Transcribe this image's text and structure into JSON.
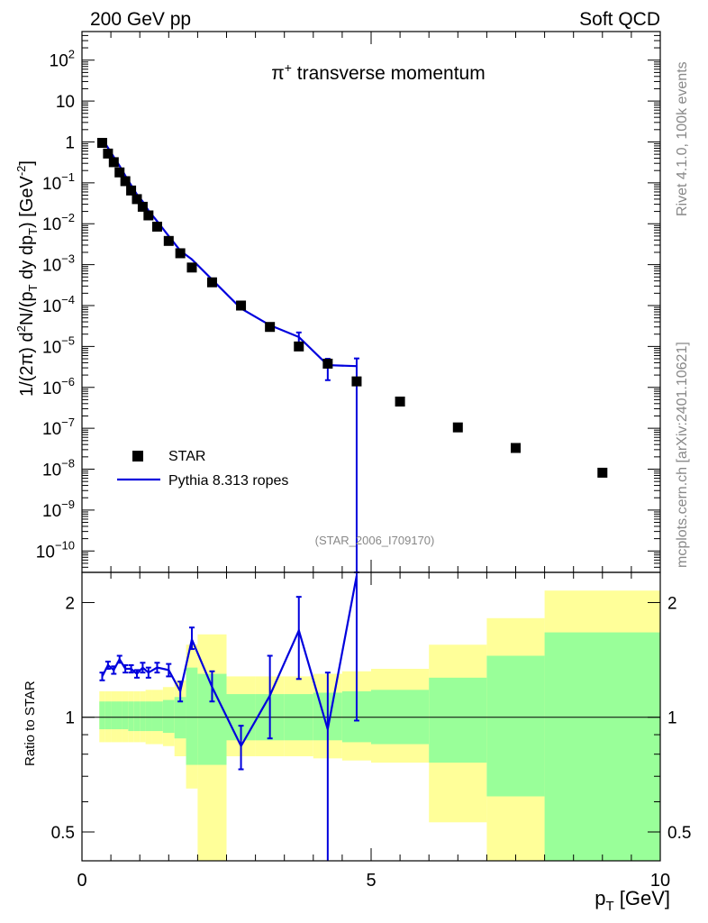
{
  "header": {
    "left": "200 GeV pp",
    "right": "Soft QCD"
  },
  "side_labels": {
    "rivet": "Rivet 4.1.0,  100k events",
    "mcplots": "mcplots.cern.ch [arXiv:2401.10621]"
  },
  "colors": {
    "data": "#000000",
    "mc": "#0000dd",
    "band_outer": "#ffff99",
    "band_inner": "#99ff99"
  },
  "chart_data": [
    {
      "type": "scatter",
      "title": "π⁺ transverse momentum",
      "watermark": "(STAR_2006_I709170)",
      "ylabel": "1/(2π)  d²N/(p_T dy dp_T) [GeV⁻²]",
      "ylabel_parts": {
        "prefix": "1/(2",
        "pi": "π",
        "mid": ")  d",
        "sup2": "2",
        "n": "N/(p",
        "sub_t1": "T",
        "dy": " dy dp",
        "sub_t2": "T",
        "unit": ") [GeV",
        "unit_sup": "-2",
        "close": "]"
      },
      "title_parts": {
        "pi": "π",
        "sup": "+",
        "rest": " transverse momentum"
      },
      "yscale": "log",
      "ylim": [
        3e-11,
        500
      ],
      "xlim": [
        0,
        10
      ],
      "yticks": [
        {
          "value": 100,
          "base": "10",
          "exp": "2"
        },
        {
          "value": 10,
          "base": "10",
          "exp": ""
        },
        {
          "value": 1,
          "base": "1",
          "exp": ""
        },
        {
          "value": 0.1,
          "base": "10",
          "exp": "−1"
        },
        {
          "value": 0.01,
          "base": "10",
          "exp": "−2"
        },
        {
          "value": 0.001,
          "base": "10",
          "exp": "−3"
        },
        {
          "value": 0.0001,
          "base": "10",
          "exp": "−4"
        },
        {
          "value": 1e-05,
          "base": "10",
          "exp": "−5"
        },
        {
          "value": 1e-06,
          "base": "10",
          "exp": "−6"
        },
        {
          "value": 1e-07,
          "base": "10",
          "exp": "−7"
        },
        {
          "value": 1e-08,
          "base": "10",
          "exp": "−8"
        },
        {
          "value": 1e-09,
          "base": "10",
          "exp": "−9"
        },
        {
          "value": 1e-10,
          "base": "10",
          "exp": "−10"
        }
      ],
      "legend": {
        "position": "bottom-left",
        "data_label": "STAR",
        "mc_label": "Pythia 8.313 ropes"
      },
      "series": [
        {
          "name": "STAR",
          "x": [
            0.35,
            0.45,
            0.55,
            0.65,
            0.75,
            0.85,
            0.95,
            1.05,
            1.15,
            1.3,
            1.5,
            1.7,
            1.9,
            2.25,
            2.75,
            3.25,
            3.75,
            4.25,
            4.75,
            5.5,
            6.5,
            7.5,
            9.0
          ],
          "y": [
            0.95,
            0.52,
            0.32,
            0.18,
            0.11,
            0.065,
            0.04,
            0.026,
            0.016,
            0.0085,
            0.0038,
            0.0019,
            0.00085,
            0.00037,
            0.0001,
            3e-05,
            1e-05,
            3.8e-06,
            1.4e-06,
            4.5e-07,
            1.05e-07,
            3.3e-08,
            8.2e-09
          ]
        },
        {
          "name": "Pythia 8.313 ropes",
          "x": [
            0.35,
            0.45,
            0.55,
            0.65,
            0.75,
            0.85,
            0.95,
            1.05,
            1.15,
            1.3,
            1.5,
            1.7,
            1.9,
            2.25,
            2.75,
            3.25,
            3.75,
            4.25,
            4.75
          ],
          "y": [
            1.2,
            0.72,
            0.43,
            0.26,
            0.148,
            0.088,
            0.052,
            0.035,
            0.021,
            0.0115,
            0.005,
            0.0022,
            0.00135,
            0.00043,
            8.5e-05,
            3.3e-05,
            1.7e-05,
            3.5e-06,
            3.3e-06
          ],
          "yerr_lo": [
            0,
            0,
            0,
            0,
            0,
            0,
            0,
            0,
            0,
            0,
            0,
            0,
            0,
            0,
            0,
            0,
            5e-06,
            2e-06,
            3.3e-06
          ],
          "yerr_hi": [
            0,
            0,
            0,
            0,
            0,
            0,
            0,
            0,
            0,
            0,
            0,
            0,
            0,
            0,
            0,
            0,
            5e-06,
            1.5e-06,
            1.8e-06
          ]
        }
      ]
    },
    {
      "type": "line",
      "ylabel": "Ratio to STAR",
      "xlabel_main": "p",
      "xlabel_sub": "T",
      "xlabel_unit": " [GeV]",
      "yscale": "log",
      "ylim": [
        0.42,
        2.4
      ],
      "xlim": [
        0,
        10
      ],
      "reference_line": 1,
      "yticks": [
        {
          "value": 2,
          "label": "2"
        },
        {
          "value": 1,
          "label": "1"
        },
        {
          "value": 0.5,
          "label": "0.5"
        }
      ],
      "xticks": [
        {
          "value": 0,
          "label": "0"
        },
        {
          "value": 5,
          "label": "5"
        },
        {
          "value": 10,
          "label": "10"
        }
      ],
      "bands": [
        {
          "x0": 0.3,
          "x1": 0.4,
          "o_lo": 0.86,
          "o_hi": 1.17,
          "i_lo": 0.93,
          "i_hi": 1.1
        },
        {
          "x0": 0.4,
          "x1": 0.5,
          "o_lo": 0.86,
          "o_hi": 1.17,
          "i_lo": 0.93,
          "i_hi": 1.1
        },
        {
          "x0": 0.5,
          "x1": 0.6,
          "o_lo": 0.86,
          "o_hi": 1.17,
          "i_lo": 0.93,
          "i_hi": 1.1
        },
        {
          "x0": 0.6,
          "x1": 0.7,
          "o_lo": 0.86,
          "o_hi": 1.17,
          "i_lo": 0.93,
          "i_hi": 1.1
        },
        {
          "x0": 0.7,
          "x1": 0.8,
          "o_lo": 0.86,
          "o_hi": 1.17,
          "i_lo": 0.93,
          "i_hi": 1.1
        },
        {
          "x0": 0.8,
          "x1": 0.9,
          "o_lo": 0.86,
          "o_hi": 1.17,
          "i_lo": 0.92,
          "i_hi": 1.1
        },
        {
          "x0": 0.9,
          "x1": 1.0,
          "o_lo": 0.86,
          "o_hi": 1.17,
          "i_lo": 0.92,
          "i_hi": 1.1
        },
        {
          "x0": 1.0,
          "x1": 1.1,
          "o_lo": 0.86,
          "o_hi": 1.17,
          "i_lo": 0.92,
          "i_hi": 1.1
        },
        {
          "x0": 1.1,
          "x1": 1.2,
          "o_lo": 0.85,
          "o_hi": 1.18,
          "i_lo": 0.92,
          "i_hi": 1.1
        },
        {
          "x0": 1.2,
          "x1": 1.4,
          "o_lo": 0.85,
          "o_hi": 1.18,
          "i_lo": 0.92,
          "i_hi": 1.1
        },
        {
          "x0": 1.4,
          "x1": 1.6,
          "o_lo": 0.84,
          "o_hi": 1.2,
          "i_lo": 0.91,
          "i_hi": 1.11
        },
        {
          "x0": 1.6,
          "x1": 1.8,
          "o_lo": 0.79,
          "o_hi": 1.25,
          "i_lo": 0.88,
          "i_hi": 1.13
        },
        {
          "x0": 1.8,
          "x1": 2.0,
          "o_lo": 0.65,
          "o_hi": 1.55,
          "i_lo": 0.75,
          "i_hi": 1.35
        },
        {
          "x0": 2.0,
          "x1": 2.5,
          "o_lo": 0.37,
          "o_hi": 1.65,
          "i_lo": 0.75,
          "i_hi": 1.3
        },
        {
          "x0": 2.5,
          "x1": 3.0,
          "o_lo": 0.79,
          "o_hi": 1.28,
          "i_lo": 0.87,
          "i_hi": 1.15
        },
        {
          "x0": 3.0,
          "x1": 3.5,
          "o_lo": 0.79,
          "o_hi": 1.28,
          "i_lo": 0.87,
          "i_hi": 1.15
        },
        {
          "x0": 3.5,
          "x1": 4.0,
          "o_lo": 0.79,
          "o_hi": 1.28,
          "i_lo": 0.87,
          "i_hi": 1.15
        },
        {
          "x0": 4.0,
          "x1": 4.5,
          "o_lo": 0.78,
          "o_hi": 1.3,
          "i_lo": 0.87,
          "i_hi": 1.16
        },
        {
          "x0": 4.5,
          "x1": 5.0,
          "o_lo": 0.77,
          "o_hi": 1.32,
          "i_lo": 0.86,
          "i_hi": 1.17
        },
        {
          "x0": 5.0,
          "x1": 6.0,
          "o_lo": 0.76,
          "o_hi": 1.34,
          "i_lo": 0.85,
          "i_hi": 1.18
        },
        {
          "x0": 6.0,
          "x1": 7.0,
          "o_lo": 0.53,
          "o_hi": 1.55,
          "i_lo": 0.76,
          "i_hi": 1.27
        },
        {
          "x0": 7.0,
          "x1": 8.0,
          "o_lo": 0.38,
          "o_hi": 1.82,
          "i_lo": 0.62,
          "i_hi": 1.45
        },
        {
          "x0": 8.0,
          "x1": 10.0,
          "o_lo": 0.38,
          "o_hi": 2.15,
          "i_lo": 0.38,
          "i_hi": 1.67
        }
      ],
      "series": [
        {
          "name": "Pythia 8.313 ropes / STAR",
          "x": [
            0.35,
            0.45,
            0.55,
            0.65,
            0.75,
            0.85,
            0.95,
            1.05,
            1.15,
            1.3,
            1.5,
            1.7,
            1.9,
            2.25,
            2.75,
            3.25,
            3.75,
            4.25,
            4.75
          ],
          "y": [
            1.28,
            1.37,
            1.33,
            1.42,
            1.34,
            1.34,
            1.3,
            1.35,
            1.31,
            1.35,
            1.33,
            1.17,
            1.6,
            1.2,
            0.84,
            1.14,
            1.69,
            0.93,
            2.35
          ],
          "err_lo": [
            0.03,
            0.03,
            0.03,
            0.03,
            0.03,
            0.03,
            0.03,
            0.04,
            0.04,
            0.04,
            0.05,
            0.07,
            0.09,
            0.1,
            0.11,
            0.26,
            0.43,
            0.6,
            1.37
          ],
          "err_hi": [
            0.03,
            0.03,
            0.03,
            0.03,
            0.03,
            0.03,
            0.03,
            0.04,
            0.04,
            0.04,
            0.05,
            0.07,
            0.12,
            0.12,
            0.11,
            0.31,
            0.38,
            0.38,
            0.1
          ]
        }
      ]
    }
  ]
}
